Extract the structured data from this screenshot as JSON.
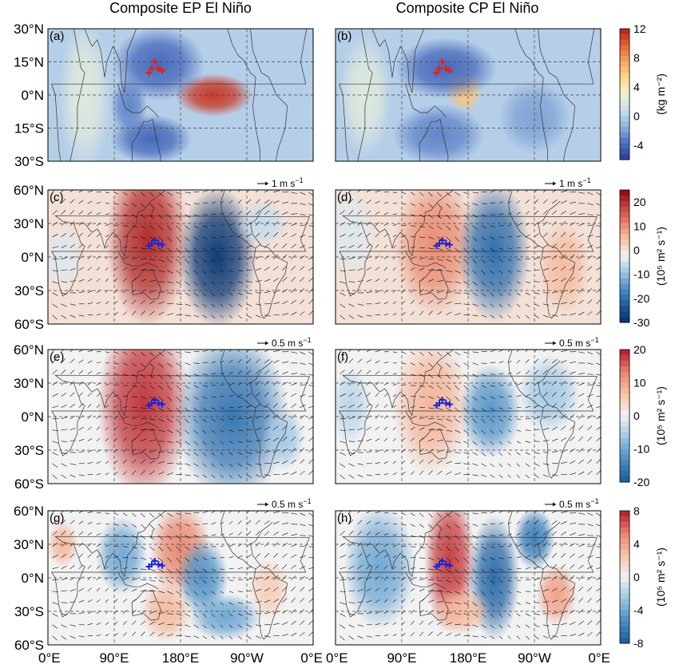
{
  "chart_data": {
    "type": "heatmap",
    "column_titles": [
      "Composite EP El Niño",
      "Composite CP El Niño"
    ],
    "x_ticks": [
      "0°E",
      "90°E",
      "180°E",
      "90°W",
      "0°E"
    ],
    "x_range_deg_east": [
      0,
      360
    ],
    "top_row_lat_ticks": [
      "30°N",
      "15°N",
      "0°N",
      "15°S",
      "30°S"
    ],
    "top_row_lat_range": [
      -30,
      30
    ],
    "lat_ticks": [
      "60°N",
      "30°N",
      "0°N",
      "30°S",
      "60°S"
    ],
    "lat_range": [
      -60,
      60
    ],
    "grid": true,
    "marker_points": [
      {
        "lon": 137,
        "lat": 10
      },
      {
        "lon": 141,
        "lat": 12
      },
      {
        "lon": 145,
        "lat": 15
      },
      {
        "lon": 150,
        "lat": 12
      },
      {
        "lon": 155,
        "lat": 11
      }
    ],
    "colorbars": [
      {
        "unit": "(kg m⁻²)",
        "ticks": [
          "12",
          "8",
          "4",
          "0",
          "-4"
        ],
        "range": [
          -6,
          12
        ],
        "colors": [
          "#2f3a8f",
          "#4a6fc0",
          "#8fb2db",
          "#c9def0",
          "#f2f2cc",
          "#fbd78f",
          "#f6a45e",
          "#e06236",
          "#b71c1c"
        ]
      },
      {
        "unit": "(10⁵ m² s⁻¹)",
        "ticks": [
          "20",
          "10",
          "0",
          "-10",
          "-20",
          "-30"
        ],
        "range": [
          -30,
          25
        ],
        "colors": [
          "#08306b",
          "#1f5a99",
          "#4a8cc4",
          "#9cc5e2",
          "#f2f2f2",
          "#f6c3a8",
          "#e7826a",
          "#c63d3a",
          "#7f0a14"
        ]
      },
      {
        "unit": "(10⁵ m² s⁻¹)",
        "ticks": [
          "20",
          "10",
          "0",
          "-10",
          "-20"
        ],
        "range": [
          -20,
          20
        ],
        "colors": [
          "#1f5a99",
          "#4a8cc4",
          "#9cc5e2",
          "#f2f2f2",
          "#f6c3a8",
          "#e7826a",
          "#b2182b"
        ]
      },
      {
        "unit": "(10⁵ m² s⁻¹)",
        "ticks": [
          "8",
          "4",
          "0",
          "-4",
          "-8"
        ],
        "range": [
          -8,
          8
        ],
        "colors": [
          "#1f5a99",
          "#4a8cc4",
          "#9cc5e2",
          "#f2f2f2",
          "#f6c3a8",
          "#e7826a",
          "#b2182b"
        ]
      }
    ],
    "panels": [
      {
        "label": "(a)",
        "row": 0,
        "col": 0,
        "arrow_label": "",
        "blobs": [
          {
            "lon": 225,
            "lat": 0,
            "rx": 38,
            "ry": 7,
            "v": 11
          },
          {
            "lon": 150,
            "lat": 14,
            "rx": 45,
            "ry": 12,
            "v": -4
          },
          {
            "lon": 140,
            "lat": -20,
            "rx": 40,
            "ry": 8,
            "v": -4
          },
          {
            "lon": 110,
            "lat": -5,
            "rx": 18,
            "ry": 10,
            "v": -3
          },
          {
            "lon": 50,
            "lat": 0,
            "rx": 25,
            "ry": 25,
            "v": 2
          }
        ]
      },
      {
        "label": "(b)",
        "row": 0,
        "col": 1,
        "arrow_label": "",
        "blobs": [
          {
            "lon": 175,
            "lat": 2,
            "rx": 18,
            "ry": 7,
            "v": 6
          },
          {
            "lon": 150,
            "lat": 12,
            "rx": 50,
            "ry": 10,
            "v": -4
          },
          {
            "lon": 140,
            "lat": -18,
            "rx": 45,
            "ry": 10,
            "v": -3
          },
          {
            "lon": 40,
            "lat": 0,
            "rx": 25,
            "ry": 20,
            "v": 2
          },
          {
            "lon": 270,
            "lat": -10,
            "rx": 35,
            "ry": 12,
            "v": -2
          }
        ]
      },
      {
        "label": "(c)",
        "row": 1,
        "col": 0,
        "arrow_label": "1 m s",
        "blobs": [
          {
            "lon": 135,
            "lat": 15,
            "rx": 40,
            "ry": 55,
            "v": 20
          },
          {
            "lon": 230,
            "lat": 0,
            "rx": 38,
            "ry": 45,
            "v": -28
          },
          {
            "lon": 290,
            "lat": 30,
            "rx": 25,
            "ry": 15,
            "v": -6
          },
          {
            "lon": 20,
            "lat": 0,
            "rx": 20,
            "ry": 20,
            "v": -4
          }
        ]
      },
      {
        "label": "(d)",
        "row": 1,
        "col": 1,
        "arrow_label": "1 m s",
        "blobs": [
          {
            "lon": 135,
            "lat": 10,
            "rx": 40,
            "ry": 45,
            "v": 10
          },
          {
            "lon": 215,
            "lat": 5,
            "rx": 35,
            "ry": 45,
            "v": -20
          },
          {
            "lon": 310,
            "lat": -10,
            "rx": 25,
            "ry": 30,
            "v": 5
          },
          {
            "lon": 20,
            "lat": 20,
            "rx": 25,
            "ry": 30,
            "v": -4
          }
        ]
      },
      {
        "label": "(e)",
        "row": 2,
        "col": 0,
        "arrow_label": "0.5 m s",
        "blobs": [
          {
            "lon": 130,
            "lat": 10,
            "rx": 45,
            "ry": 60,
            "v": 18
          },
          {
            "lon": 250,
            "lat": 0,
            "rx": 55,
            "ry": 55,
            "v": -16
          },
          {
            "lon": 320,
            "lat": -20,
            "rx": 20,
            "ry": 20,
            "v": -6
          }
        ]
      },
      {
        "label": "(f)",
        "row": 2,
        "col": 1,
        "arrow_label": "0.5 m s",
        "blobs": [
          {
            "lon": 130,
            "lat": 10,
            "rx": 38,
            "ry": 45,
            "v": 8
          },
          {
            "lon": 210,
            "lat": 5,
            "rx": 30,
            "ry": 30,
            "v": -12
          },
          {
            "lon": 290,
            "lat": 20,
            "rx": 30,
            "ry": 25,
            "v": -6
          },
          {
            "lon": 20,
            "lat": 10,
            "rx": 20,
            "ry": 25,
            "v": -4
          }
        ]
      },
      {
        "label": "(g)",
        "row": 3,
        "col": 0,
        "arrow_label": "0.5 m s",
        "blobs": [
          {
            "lon": 180,
            "lat": 25,
            "rx": 30,
            "ry": 30,
            "v": 5
          },
          {
            "lon": 210,
            "lat": 0,
            "rx": 25,
            "ry": 25,
            "v": -5
          },
          {
            "lon": 100,
            "lat": 20,
            "rx": 25,
            "ry": 25,
            "v": -4
          },
          {
            "lon": 160,
            "lat": -30,
            "rx": 25,
            "ry": 20,
            "v": 3
          },
          {
            "lon": 240,
            "lat": -35,
            "rx": 35,
            "ry": 15,
            "v": -4
          },
          {
            "lon": 20,
            "lat": 30,
            "rx": 15,
            "ry": 15,
            "v": 3
          },
          {
            "lon": 300,
            "lat": -10,
            "rx": 20,
            "ry": 20,
            "v": 2
          }
        ]
      },
      {
        "label": "(h)",
        "row": 3,
        "col": 1,
        "arrow_label": "0.5 m s",
        "blobs": [
          {
            "lon": 155,
            "lat": 15,
            "rx": 25,
            "ry": 45,
            "v": 7
          },
          {
            "lon": 215,
            "lat": 0,
            "rx": 25,
            "ry": 40,
            "v": -7
          },
          {
            "lon": 270,
            "lat": 35,
            "rx": 20,
            "ry": 20,
            "v": -6
          },
          {
            "lon": 60,
            "lat": 10,
            "rx": 35,
            "ry": 40,
            "v": -4
          },
          {
            "lon": 300,
            "lat": -15,
            "rx": 20,
            "ry": 20,
            "v": 4
          },
          {
            "lon": 170,
            "lat": -30,
            "rx": 30,
            "ry": 15,
            "v": 3
          }
        ]
      }
    ]
  }
}
